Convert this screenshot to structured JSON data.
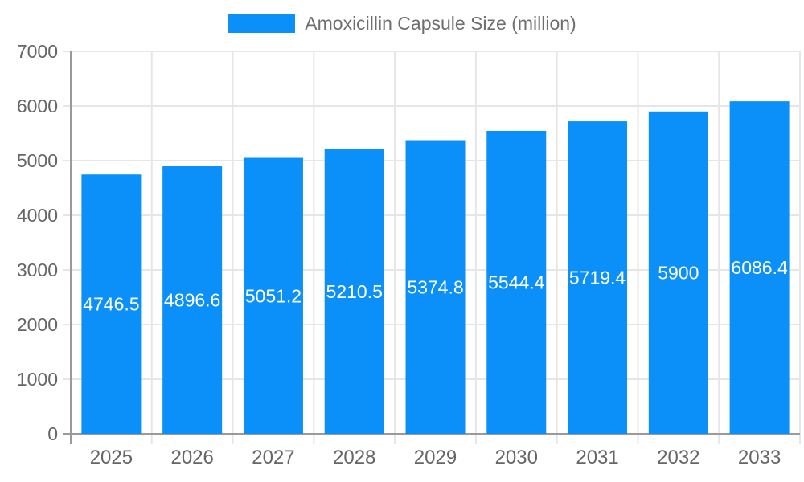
{
  "chart_data": {
    "type": "bar",
    "title": "Amoxicillin Capsule Size (million)",
    "legend": {
      "label": "Amoxicillin Capsule Size (million)",
      "position": "top"
    },
    "categories": [
      "2025",
      "2026",
      "2027",
      "2028",
      "2029",
      "2030",
      "2031",
      "2032",
      "2033"
    ],
    "series": [
      {
        "name": "Amoxicillin Capsule Size (million)",
        "values": [
          4746.5,
          4896.6,
          5051.2,
          5210.5,
          5374.8,
          5544.4,
          5719.4,
          5900,
          6086.4
        ],
        "value_labels": [
          "4746.5",
          "4896.6",
          "5051.2",
          "5210.5",
          "5374.8",
          "5544.4",
          "5719.4",
          "5900",
          "6086.4"
        ]
      }
    ],
    "xlabel": "",
    "ylabel": "",
    "ylim": [
      0,
      7000
    ],
    "ytick_step": 1000,
    "ytick_labels": [
      "0",
      "1000",
      "2000",
      "3000",
      "4000",
      "5000",
      "6000",
      "7000"
    ],
    "grid": "on",
    "colors": {
      "bar": "#0b8ff9",
      "grid_line": "#e6e6e6",
      "axis_line": "#9a9a9a",
      "axis_text": "#666666",
      "value_text": "#ffffff",
      "legend_text": "#6e6e6e"
    }
  }
}
